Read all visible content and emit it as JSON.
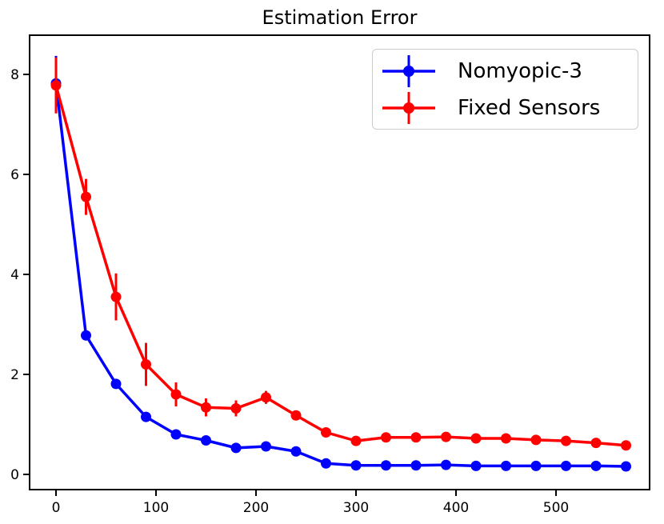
{
  "chart_data": {
    "type": "line",
    "title": "Estimation Error",
    "xlabel": "",
    "ylabel": "",
    "grid": false,
    "legend_position": "upper right",
    "xlim": [
      -26.4,
      593.6
    ],
    "ylim": [
      -0.304,
      8.784
    ],
    "xticks": [
      0,
      100,
      200,
      300,
      400,
      500
    ],
    "yticks": [
      0,
      2,
      4,
      6,
      8
    ],
    "x": [
      0,
      30,
      60,
      90,
      120,
      150,
      180,
      210,
      240,
      270,
      300,
      330,
      360,
      390,
      420,
      450,
      480,
      510,
      540,
      570
    ],
    "series": [
      {
        "name": "Nomyopic-3",
        "color": "#0000ff",
        "values": [
          7.82,
          2.78,
          1.81,
          1.15,
          0.8,
          0.68,
          0.53,
          0.56,
          0.46,
          0.22,
          0.18,
          0.18,
          0.18,
          0.19,
          0.17,
          0.17,
          0.17,
          0.17,
          0.17,
          0.16
        ],
        "errors": [
          0.55,
          0.07,
          0.07,
          0.06,
          0.05,
          0.05,
          0.05,
          0.05,
          0.04,
          0.03,
          0.02,
          0.02,
          0.02,
          0.02,
          0.02,
          0.02,
          0.02,
          0.02,
          0.02,
          0.02
        ]
      },
      {
        "name": "Fixed Sensors",
        "color": "#ff0000",
        "values": [
          7.78,
          5.55,
          3.55,
          2.2,
          1.6,
          1.34,
          1.32,
          1.54,
          1.18,
          0.84,
          0.67,
          0.74,
          0.74,
          0.75,
          0.72,
          0.72,
          0.69,
          0.67,
          0.63,
          0.58
        ],
        "errors": [
          0.56,
          0.36,
          0.47,
          0.43,
          0.24,
          0.18,
          0.16,
          0.13,
          0.08,
          0.06,
          0.04,
          0.04,
          0.04,
          0.04,
          0.03,
          0.03,
          0.03,
          0.03,
          0.03,
          0.03
        ]
      }
    ]
  },
  "style": {
    "axis_color": "#000000",
    "background": "#ffffff",
    "legend_border": "#cccccc"
  }
}
